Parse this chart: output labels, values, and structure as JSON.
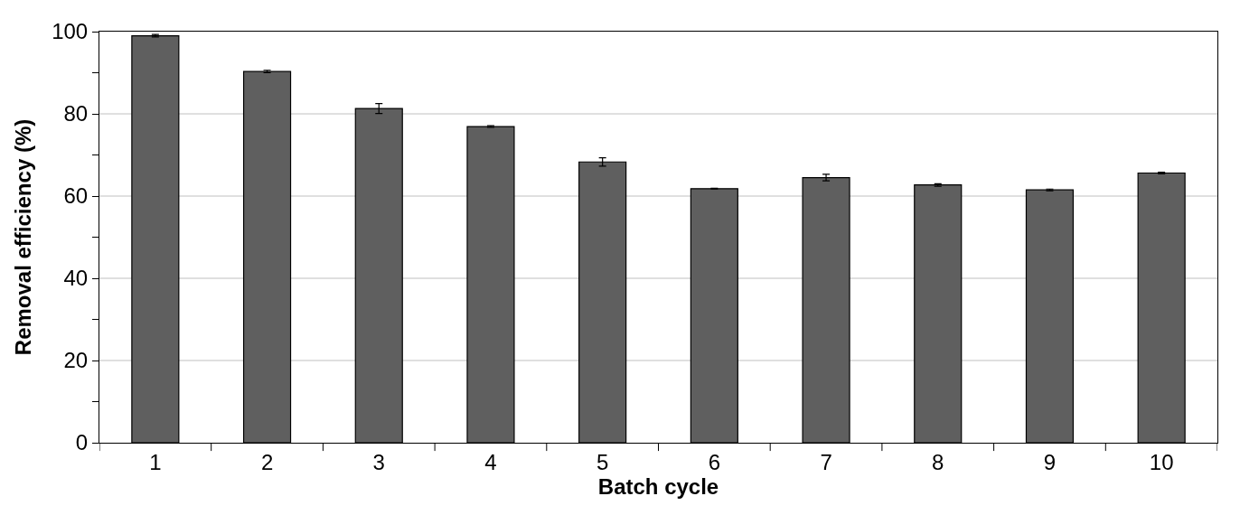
{
  "chart_data": {
    "type": "bar",
    "xlabel": "Batch cycle",
    "ylabel": "Removal efficiency (%)",
    "categories": [
      "1",
      "2",
      "3",
      "4",
      "5",
      "6",
      "7",
      "8",
      "9",
      "10"
    ],
    "values": [
      99,
      90.3,
      81.3,
      76.9,
      68.3,
      61.8,
      64.5,
      62.7,
      61.5,
      65.6
    ],
    "errors": [
      0.3,
      0.3,
      1.2,
      0.2,
      1.0,
      0.1,
      0.8,
      0.3,
      0.2,
      0.2
    ],
    "color": "#5f5f5f",
    "ylim": [
      0,
      100
    ],
    "yticks": [
      0,
      {
        "value": 10,
        "label": null
      },
      20,
      {
        "value": 30,
        "label": null
      },
      40,
      {
        "value": 50,
        "label": null
      },
      60,
      {
        "value": 70,
        "label": null
      },
      80,
      {
        "value": 90,
        "label": null
      },
      100
    ],
    "grid": "y"
  }
}
